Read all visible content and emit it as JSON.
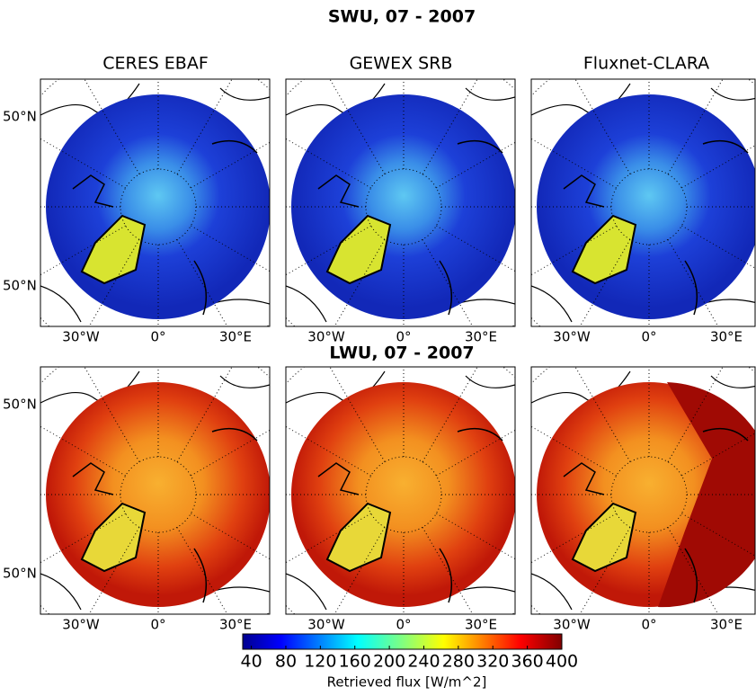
{
  "title_top": "SWU, 07 - 2007",
  "title_bottom": "LWU, 07 - 2007",
  "panels": [
    "CERES EBAF",
    "GEWEX SRB",
    "Fluxnet-CLARA"
  ],
  "lat_label": "50°N",
  "lon_labels": [
    "30°W",
    "0°",
    "30°E"
  ],
  "colorbar": {
    "label": "Retrieved flux [W/m^2]",
    "range": [
      30,
      400
    ],
    "ticks": [
      40,
      80,
      120,
      160,
      200,
      240,
      280,
      320,
      360,
      400
    ]
  }
}
